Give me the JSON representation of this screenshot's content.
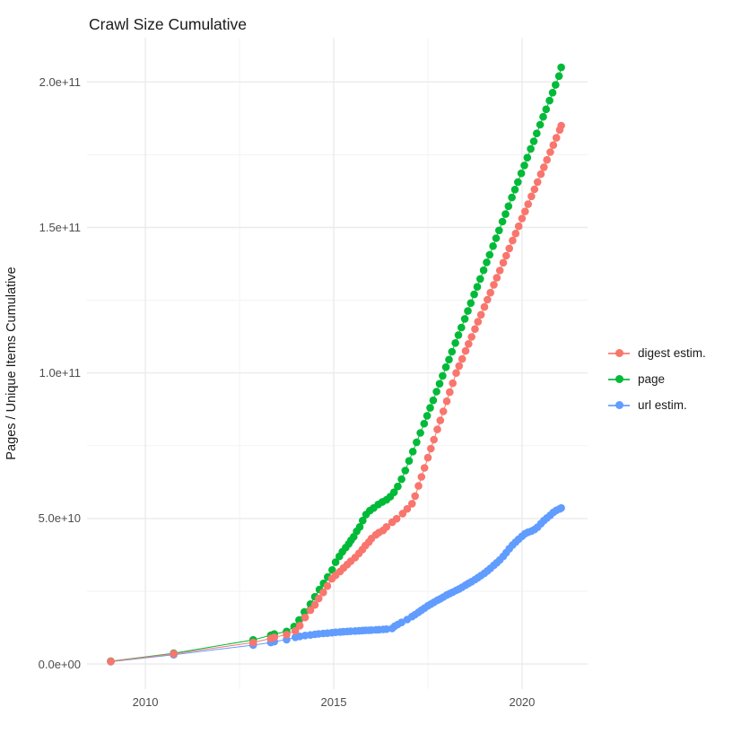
{
  "title": "Crawl Size Cumulative",
  "colors": {
    "background": "#FFFFFF",
    "grid_major": "#EBEBEB",
    "grid_minor": "#F3F3F3",
    "tick_text": "#4D4D4D",
    "title_text": "#1A1A1A",
    "digest": "#F8766D",
    "page": "#00BA38",
    "url": "#619CFF"
  },
  "chart_data": {
    "type": "scatter",
    "title": "Crawl Size Cumulative",
    "xlabel": "",
    "ylabel": "Pages / Unique Items Cumulative",
    "legend_position": "right",
    "grid": true,
    "x_axis": {
      "lim": [
        2008.45,
        2021.74
      ],
      "ticks": [
        {
          "v": 2010,
          "label": "2010"
        },
        {
          "v": 2015,
          "label": "2015"
        },
        {
          "v": 2020,
          "label": "2020"
        }
      ],
      "minor": [
        2012.5,
        2017.5
      ]
    },
    "y_axis": {
      "unit": "1e9",
      "lim": [
        -8.6,
        215.2
      ],
      "ticks": [
        {
          "v": 0,
          "label": "0.0e+00"
        },
        {
          "v": 50,
          "label": "5.0e+10"
        },
        {
          "v": 100,
          "label": "1.0e+11"
        },
        {
          "v": 150,
          "label": "1.5e+11"
        },
        {
          "v": 200,
          "label": "2.0e+11"
        }
      ],
      "minor": [
        25,
        75,
        125,
        175
      ]
    },
    "draw_order": [
      2,
      1,
      0
    ],
    "series": [
      {
        "name": "digest estim.",
        "color": "#F8766D",
        "points": [
          [
            2009.08,
            0.9
          ],
          [
            2010.75,
            3.5
          ],
          [
            2012.86,
            7.4
          ],
          [
            2013.33,
            8.8
          ],
          [
            2013.42,
            9.2
          ],
          [
            2013.75,
            10.1
          ],
          [
            2013.98,
            11.4
          ],
          [
            2014.1,
            13.2
          ],
          [
            2014.24,
            16.0
          ],
          [
            2014.38,
            18.5
          ],
          [
            2014.5,
            20.3
          ],
          [
            2014.6,
            22.5
          ],
          [
            2014.72,
            24.6
          ],
          [
            2014.83,
            26.8
          ],
          [
            2014.95,
            29.3
          ],
          [
            2015.05,
            30.5
          ],
          [
            2015.17,
            31.8
          ],
          [
            2015.26,
            33.0
          ],
          [
            2015.36,
            34.2
          ],
          [
            2015.45,
            35.3
          ],
          [
            2015.57,
            36.6
          ],
          [
            2015.67,
            38.0
          ],
          [
            2015.76,
            39.3
          ],
          [
            2015.84,
            40.7
          ],
          [
            2015.93,
            41.9
          ],
          [
            2016.0,
            43.1
          ],
          [
            2016.12,
            44.4
          ],
          [
            2016.2,
            45.2
          ],
          [
            2016.31,
            45.9
          ],
          [
            2016.4,
            47.1
          ],
          [
            2016.55,
            48.7
          ],
          [
            2016.67,
            49.9
          ],
          [
            2016.83,
            51.7
          ],
          [
            2016.95,
            53.3
          ],
          [
            2017.08,
            55.1
          ],
          [
            2017.16,
            57.7
          ],
          [
            2017.25,
            61.2
          ],
          [
            2017.33,
            64.3
          ],
          [
            2017.41,
            67.4
          ],
          [
            2017.5,
            70.9
          ],
          [
            2017.58,
            74.0
          ],
          [
            2017.66,
            77.1
          ],
          [
            2017.75,
            80.6
          ],
          [
            2017.83,
            83.7
          ],
          [
            2017.91,
            86.8
          ],
          [
            2018.0,
            90.3
          ],
          [
            2018.08,
            93.4
          ],
          [
            2018.16,
            96.5
          ],
          [
            2018.25,
            100.0
          ],
          [
            2018.33,
            102.4
          ],
          [
            2018.41,
            104.8
          ],
          [
            2018.5,
            107.6
          ],
          [
            2018.58,
            110.0
          ],
          [
            2018.66,
            112.4
          ],
          [
            2018.75,
            115.1
          ],
          [
            2018.83,
            117.6
          ],
          [
            2018.91,
            120.0
          ],
          [
            2019.0,
            122.7
          ],
          [
            2019.08,
            125.2
          ],
          [
            2019.16,
            127.6
          ],
          [
            2019.25,
            130.3
          ],
          [
            2019.33,
            132.7
          ],
          [
            2019.41,
            135.2
          ],
          [
            2019.5,
            137.9
          ],
          [
            2019.58,
            140.3
          ],
          [
            2019.66,
            142.8
          ],
          [
            2019.75,
            145.5
          ],
          [
            2019.83,
            147.9
          ],
          [
            2019.91,
            150.4
          ],
          [
            2020.0,
            153.1
          ],
          [
            2020.08,
            155.5
          ],
          [
            2020.16,
            158.0
          ],
          [
            2020.25,
            160.7
          ],
          [
            2020.33,
            163.1
          ],
          [
            2020.41,
            165.6
          ],
          [
            2020.5,
            168.3
          ],
          [
            2020.58,
            170.7
          ],
          [
            2020.66,
            173.2
          ],
          [
            2020.75,
            175.9
          ],
          [
            2020.83,
            178.3
          ],
          [
            2020.91,
            180.8
          ],
          [
            2021.0,
            183.5
          ],
          [
            2021.04,
            185.0
          ]
        ]
      },
      {
        "name": "page",
        "color": "#00BA38",
        "points": [
          [
            2009.08,
            1.0
          ],
          [
            2010.75,
            3.7
          ],
          [
            2012.86,
            8.3
          ],
          [
            2013.33,
            9.9
          ],
          [
            2013.42,
            10.3
          ],
          [
            2013.75,
            11.2
          ],
          [
            2013.95,
            12.9
          ],
          [
            2014.08,
            15.1
          ],
          [
            2014.22,
            17.9
          ],
          [
            2014.38,
            20.6
          ],
          [
            2014.5,
            23.1
          ],
          [
            2014.62,
            25.6
          ],
          [
            2014.73,
            27.7
          ],
          [
            2014.84,
            29.9
          ],
          [
            2014.96,
            32.3
          ],
          [
            2015.05,
            35.0
          ],
          [
            2015.15,
            37.0
          ],
          [
            2015.23,
            38.6
          ],
          [
            2015.32,
            40.0
          ],
          [
            2015.4,
            41.3
          ],
          [
            2015.46,
            42.5
          ],
          [
            2015.53,
            43.7
          ],
          [
            2015.61,
            45.6
          ],
          [
            2015.69,
            47.1
          ],
          [
            2015.77,
            49.3
          ],
          [
            2015.86,
            51.4
          ],
          [
            2015.96,
            52.7
          ],
          [
            2016.06,
            53.6
          ],
          [
            2016.18,
            54.8
          ],
          [
            2016.29,
            55.7
          ],
          [
            2016.4,
            56.4
          ],
          [
            2016.5,
            57.5
          ],
          [
            2016.6,
            59.0
          ],
          [
            2016.7,
            61.0
          ],
          [
            2016.8,
            63.5
          ],
          [
            2016.9,
            66.5
          ],
          [
            2017.0,
            69.8
          ],
          [
            2017.1,
            73.0
          ],
          [
            2017.2,
            76.2
          ],
          [
            2017.3,
            79.4
          ],
          [
            2017.4,
            82.6
          ],
          [
            2017.48,
            85.3
          ],
          [
            2017.56,
            88.0
          ],
          [
            2017.64,
            90.6
          ],
          [
            2017.73,
            93.6
          ],
          [
            2017.81,
            96.3
          ],
          [
            2017.89,
            99.0
          ],
          [
            2017.98,
            102.0
          ],
          [
            2018.06,
            104.6
          ],
          [
            2018.14,
            107.3
          ],
          [
            2018.23,
            110.3
          ],
          [
            2018.31,
            113.0
          ],
          [
            2018.39,
            115.6
          ],
          [
            2018.48,
            118.6
          ],
          [
            2018.56,
            121.3
          ],
          [
            2018.64,
            124.0
          ],
          [
            2018.73,
            127.0
          ],
          [
            2018.81,
            129.6
          ],
          [
            2018.89,
            132.3
          ],
          [
            2018.98,
            135.3
          ],
          [
            2019.06,
            138.0
          ],
          [
            2019.14,
            140.6
          ],
          [
            2019.23,
            143.6
          ],
          [
            2019.31,
            146.3
          ],
          [
            2019.39,
            149.0
          ],
          [
            2019.48,
            152.0
          ],
          [
            2019.56,
            154.6
          ],
          [
            2019.64,
            157.3
          ],
          [
            2019.73,
            160.3
          ],
          [
            2019.81,
            163.0
          ],
          [
            2019.89,
            165.6
          ],
          [
            2019.98,
            168.6
          ],
          [
            2020.06,
            171.3
          ],
          [
            2020.14,
            174.0
          ],
          [
            2020.23,
            177.0
          ],
          [
            2020.31,
            179.6
          ],
          [
            2020.39,
            182.3
          ],
          [
            2020.48,
            185.3
          ],
          [
            2020.56,
            188.0
          ],
          [
            2020.64,
            190.6
          ],
          [
            2020.73,
            193.6
          ],
          [
            2020.81,
            196.3
          ],
          [
            2020.89,
            199.0
          ],
          [
            2020.98,
            202.0
          ],
          [
            2021.04,
            205.0
          ]
        ]
      },
      {
        "name": "url estim.",
        "color": "#619CFF",
        "points": [
          [
            2009.08,
            0.8
          ],
          [
            2010.75,
            3.2
          ],
          [
            2012.86,
            6.5
          ],
          [
            2013.33,
            7.4
          ],
          [
            2013.42,
            7.7
          ],
          [
            2013.75,
            8.4
          ],
          [
            2013.98,
            9.2
          ],
          [
            2014.1,
            9.5
          ],
          [
            2014.24,
            9.8
          ],
          [
            2014.38,
            10.0
          ],
          [
            2014.5,
            10.2
          ],
          [
            2014.6,
            10.35
          ],
          [
            2014.72,
            10.5
          ],
          [
            2014.83,
            10.6
          ],
          [
            2014.95,
            10.75
          ],
          [
            2015.05,
            10.9
          ],
          [
            2015.17,
            11.0
          ],
          [
            2015.26,
            11.1
          ],
          [
            2015.36,
            11.2
          ],
          [
            2015.45,
            11.25
          ],
          [
            2015.57,
            11.35
          ],
          [
            2015.67,
            11.4
          ],
          [
            2015.76,
            11.5
          ],
          [
            2015.84,
            11.55
          ],
          [
            2015.93,
            11.6
          ],
          [
            2016.0,
            11.65
          ],
          [
            2016.12,
            11.75
          ],
          [
            2016.2,
            11.8
          ],
          [
            2016.31,
            11.9
          ],
          [
            2016.4,
            12.0
          ],
          [
            2016.55,
            12.2
          ],
          [
            2016.62,
            13.0
          ],
          [
            2016.7,
            13.6
          ],
          [
            2016.8,
            14.3
          ],
          [
            2016.95,
            15.3
          ],
          [
            2017.08,
            16.3
          ],
          [
            2017.16,
            17.0
          ],
          [
            2017.25,
            17.8
          ],
          [
            2017.33,
            18.5
          ],
          [
            2017.41,
            19.2
          ],
          [
            2017.5,
            20.0
          ],
          [
            2017.58,
            20.6
          ],
          [
            2017.66,
            21.2
          ],
          [
            2017.75,
            21.9
          ],
          [
            2017.83,
            22.4
          ],
          [
            2017.91,
            23.0
          ],
          [
            2018.0,
            23.7
          ],
          [
            2018.08,
            24.2
          ],
          [
            2018.16,
            24.7
          ],
          [
            2018.25,
            25.3
          ],
          [
            2018.33,
            25.8
          ],
          [
            2018.41,
            26.4
          ],
          [
            2018.5,
            27.1
          ],
          [
            2018.58,
            27.7
          ],
          [
            2018.66,
            28.3
          ],
          [
            2018.75,
            29.0
          ],
          [
            2018.83,
            29.7
          ],
          [
            2018.91,
            30.4
          ],
          [
            2019.0,
            31.2
          ],
          [
            2019.08,
            32.0
          ],
          [
            2019.16,
            32.9
          ],
          [
            2019.25,
            33.9
          ],
          [
            2019.33,
            34.8
          ],
          [
            2019.41,
            35.8
          ],
          [
            2019.5,
            37.0
          ],
          [
            2019.58,
            38.3
          ],
          [
            2019.66,
            39.6
          ],
          [
            2019.75,
            40.9
          ],
          [
            2019.83,
            41.9
          ],
          [
            2019.91,
            42.9
          ],
          [
            2020.0,
            43.9
          ],
          [
            2020.08,
            44.8
          ],
          [
            2020.16,
            45.3
          ],
          [
            2020.25,
            45.7
          ],
          [
            2020.33,
            46.2
          ],
          [
            2020.41,
            47.0
          ],
          [
            2020.5,
            48.2
          ],
          [
            2020.58,
            49.3
          ],
          [
            2020.66,
            50.2
          ],
          [
            2020.75,
            51.1
          ],
          [
            2020.83,
            52.1
          ],
          [
            2020.91,
            52.8
          ],
          [
            2021.0,
            53.3
          ],
          [
            2021.04,
            53.6
          ]
        ]
      }
    ]
  }
}
